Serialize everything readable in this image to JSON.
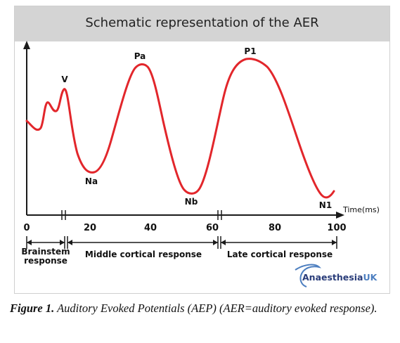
{
  "title": "Schematic representation of the AER",
  "x_axis": {
    "label": "Time(ms)",
    "ticks": [
      "0",
      "20",
      "40",
      "60",
      "80",
      "100"
    ]
  },
  "peaks": {
    "v": "V",
    "na": "Na",
    "pa": "Pa",
    "nb": "Nb",
    "p1": "P1",
    "n1": "N1"
  },
  "regions": {
    "brainstem_line1": "Brainstem",
    "brainstem_line2": "response",
    "middle": "Middle cortical response",
    "late": "Late cortical response"
  },
  "logo": {
    "main": "Anaesthesia",
    "suffix": "UK"
  },
  "caption": {
    "label": "Figure 1.",
    "text": " Auditory Evoked Potentials (AEP) (AER=auditory evoked response)."
  },
  "colors": {
    "curve": "#e2262b",
    "axis": "#1a1a1a",
    "title_bar": "#d4d4d4"
  }
}
